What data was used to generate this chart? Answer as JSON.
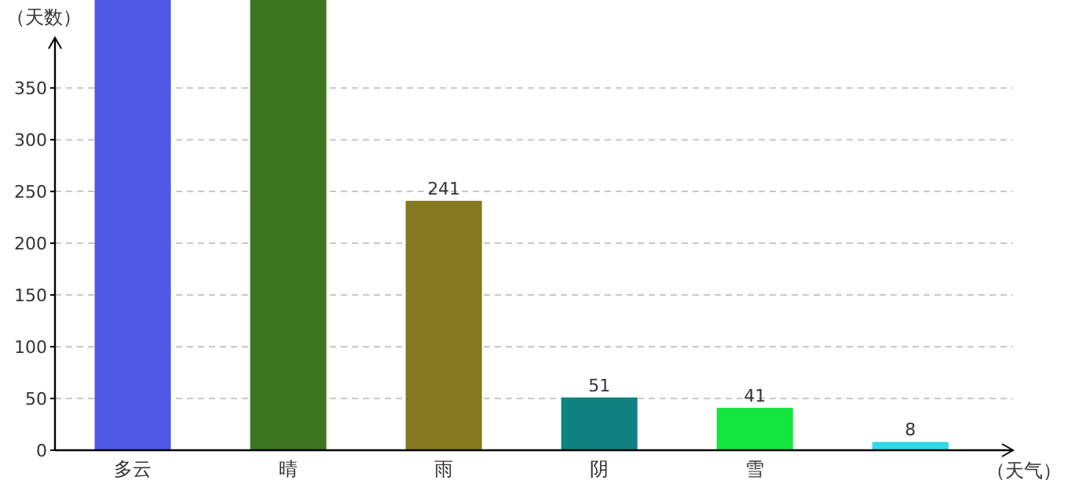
{
  "chart_data": {
    "type": "bar",
    "ylabel": "（天数）",
    "xlabel": "（天气）",
    "categories": [
      "多云",
      "晴",
      "雨",
      "阴",
      "雪",
      null
    ],
    "values": [
      435,
      435,
      241,
      51,
      41,
      8
    ],
    "colors": [
      "#5059e6",
      "#3d7520",
      "#857820",
      "#118080",
      "#14e640",
      "#30d8e8"
    ],
    "value_labels": [
      null,
      null,
      "241",
      "51",
      "41",
      "8"
    ],
    "ylim": [
      0,
      435
    ],
    "yticks": [
      0,
      50,
      100,
      150,
      200,
      250,
      300,
      350
    ],
    "grid": "y"
  }
}
